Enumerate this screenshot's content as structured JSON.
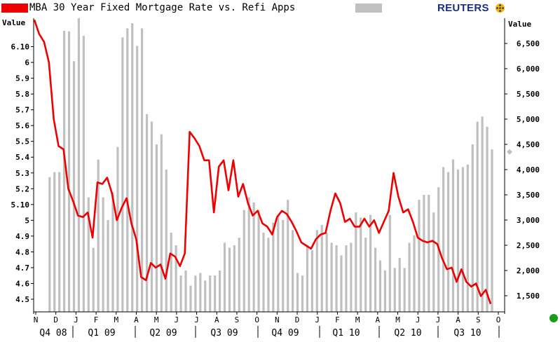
{
  "header": {
    "title": "MBA 30 Year Fixed Mortgage Rate vs. Refi Apps",
    "brand": "REUTERS",
    "colors": {
      "rate_line": "#ee0000",
      "refi_bars": "#c0c0c0",
      "brand": "#1a2f80"
    }
  },
  "chart_data": {
    "type": "bar+line",
    "title": "MBA 30 Year Fixed Mortgage Rate vs. Refi Apps",
    "left_axis": {
      "label": "Value",
      "ylim": [
        4.42,
        6.28
      ],
      "ticks": [
        "6.10",
        "6",
        "5.9",
        "5.8",
        "5.7",
        "5.6",
        "5.5",
        "5.4",
        "5.3",
        "5.2",
        "5.10",
        "5",
        "4.9",
        "4.8",
        "4.7",
        "4.6",
        "4.5"
      ],
      "tick_values": [
        6.1,
        6.0,
        5.9,
        5.8,
        5.7,
        5.6,
        5.5,
        5.4,
        5.3,
        5.2,
        5.1,
        5.0,
        4.9,
        4.8,
        4.7,
        4.6,
        4.5
      ]
    },
    "right_axis": {
      "label": "Value",
      "ylim": [
        1180,
        7000
      ],
      "ticks": [
        "6,500",
        "6,000",
        "5,500",
        "5,000",
        "4,500",
        "4,000",
        "3,500",
        "3,000",
        "2,500",
        "2,000",
        "1,500"
      ],
      "tick_values": [
        6500,
        6000,
        5500,
        5000,
        4500,
        4000,
        3500,
        3000,
        2500,
        2000,
        1500
      ],
      "last_value_marker": 4350
    },
    "x_axis": {
      "month_labels": [
        "N",
        "D",
        "J",
        "F",
        "M",
        "A",
        "M",
        "J",
        "J",
        "A",
        "S",
        "O",
        "N",
        "D",
        "J",
        "F",
        "M",
        "A",
        "M",
        "J",
        "J",
        "A",
        "S",
        "O"
      ],
      "quarter_labels": [
        "Q4 08",
        "Q1 09",
        "Q2 09",
        "Q3 09",
        "Q4 09",
        "Q1 10",
        "Q2 10",
        "Q3 10"
      ],
      "start": "2008-11-01",
      "end": "2010-10-15"
    },
    "series": [
      {
        "name": "MBA 30 Year Fixed Mortgage Rate",
        "kind": "line",
        "axis": "left",
        "color": "#ee0000",
        "values": [
          6.27,
          6.18,
          6.13,
          6.0,
          5.64,
          5.47,
          5.45,
          5.2,
          5.12,
          5.03,
          5.02,
          5.05,
          4.89,
          5.24,
          5.23,
          5.27,
          5.17,
          5.0,
          5.08,
          5.14,
          4.98,
          4.88,
          4.64,
          4.62,
          4.73,
          4.7,
          4.72,
          4.63,
          4.79,
          4.77,
          4.71,
          4.79,
          5.56,
          5.52,
          5.47,
          5.38,
          5.38,
          5.05,
          5.34,
          5.38,
          5.19,
          5.38,
          5.15,
          5.23,
          5.11,
          5.03,
          5.06,
          4.98,
          4.96,
          4.91,
          5.02,
          5.06,
          5.04,
          4.99,
          4.93,
          4.86,
          4.84,
          4.82,
          4.88,
          4.91,
          4.92,
          5.06,
          5.17,
          5.11,
          4.99,
          5.01,
          4.96,
          4.96,
          5.01,
          4.96,
          5.0,
          4.92,
          4.99,
          5.06,
          5.3,
          5.15,
          5.05,
          5.07,
          4.99,
          4.89,
          4.87,
          4.86,
          4.87,
          4.85,
          4.76,
          4.69,
          4.7,
          4.61,
          4.69,
          4.61,
          4.58,
          4.6,
          4.52,
          4.56,
          4.47
        ]
      },
      {
        "name": "Refi Apps",
        "kind": "bar",
        "axis": "right",
        "color": "#c0c0c0",
        "values": [
          1180,
          1190,
          1180,
          3850,
          3950,
          3950,
          6750,
          6740,
          6150,
          7000,
          6650,
          3450,
          2450,
          4200,
          3450,
          3000,
          3550,
          4450,
          6620,
          6800,
          6900,
          6450,
          6800,
          5100,
          4950,
          4500,
          4700,
          4000,
          2750,
          2500,
          1900,
          2000,
          1700,
          1900,
          1950,
          1800,
          1900,
          1900,
          2000,
          2550,
          2450,
          2500,
          2650,
          3200,
          3450,
          3350,
          3200,
          2750,
          2650,
          2950,
          3100,
          3000,
          3400,
          2800,
          1950,
          1900,
          2500,
          2400,
          2800,
          2900,
          2750,
          2550,
          2500,
          2300,
          2500,
          2550,
          3150,
          3050,
          2650,
          3100,
          2450,
          2200,
          2000,
          3100,
          2050,
          2250,
          2050,
          2550,
          2700,
          3400,
          3500,
          3500,
          3150,
          3650,
          4050,
          3950,
          4200,
          4000,
          4050,
          4100,
          4500,
          4950,
          5050,
          4850,
          4400
        ]
      }
    ]
  }
}
